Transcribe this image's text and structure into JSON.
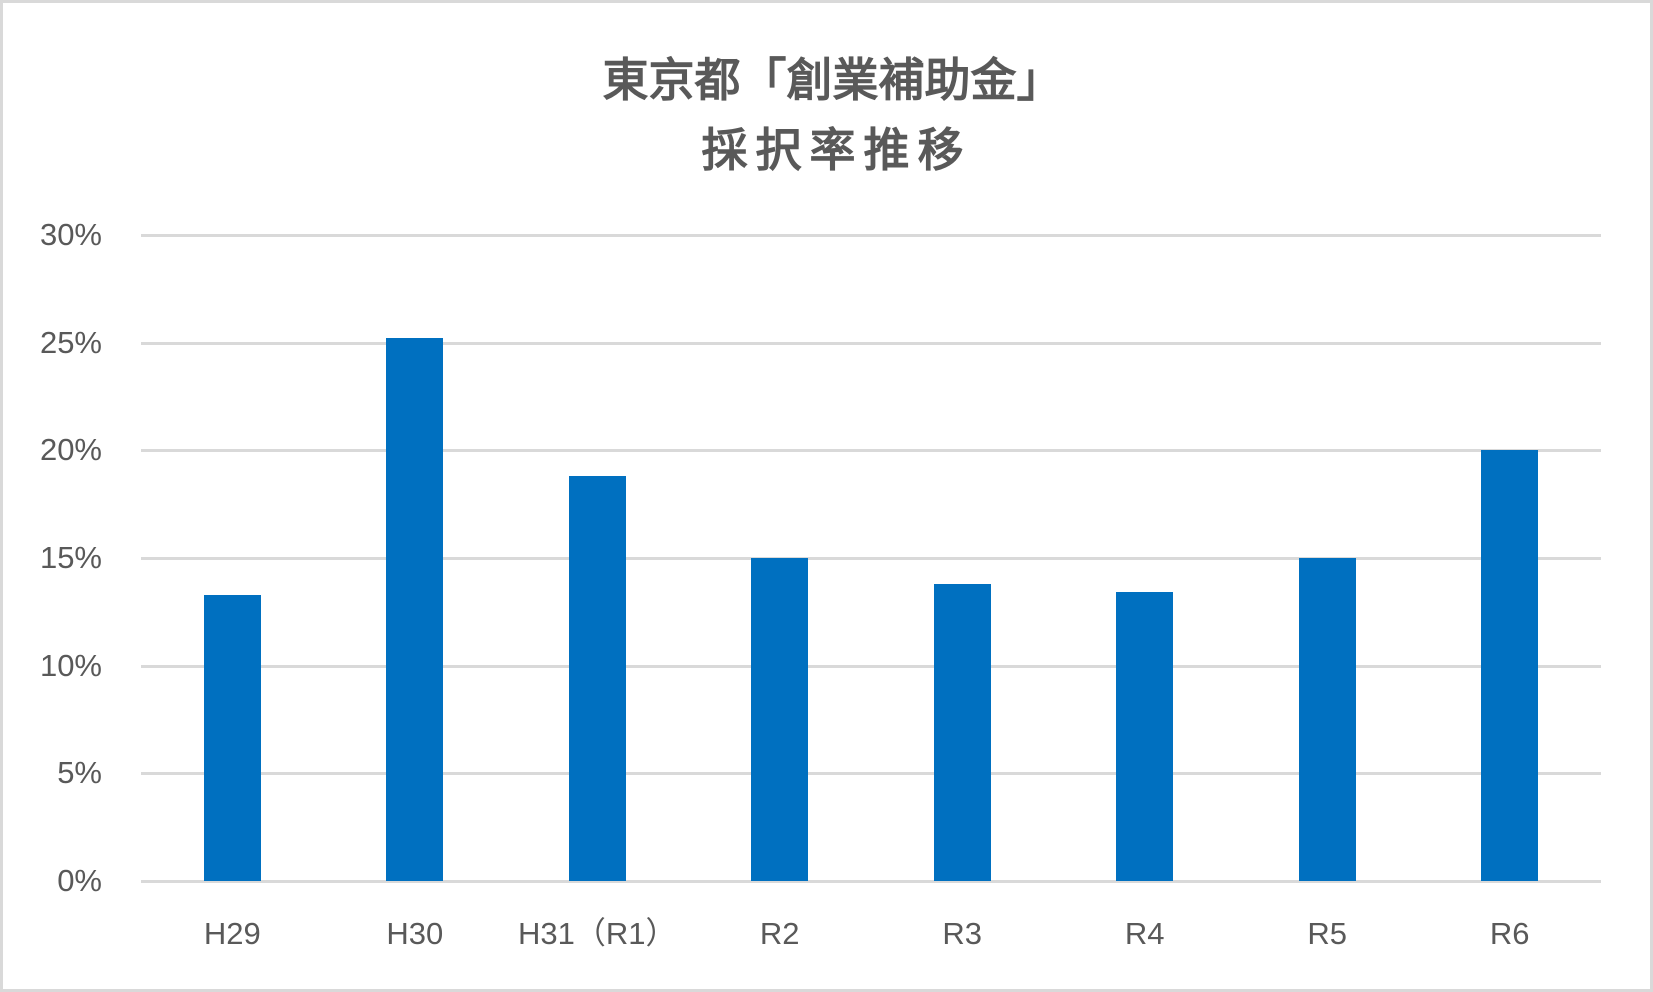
{
  "chart": {
    "title_line1": "東京都「創業補助金」",
    "title_line2": "採択率推移",
    "bar_color": "#0070C0",
    "grid_color": "#D9D9D9",
    "text_color": "#595959",
    "y_ticks": [
      "0%",
      "5%",
      "10%",
      "15%",
      "20%",
      "25%",
      "30%"
    ],
    "categories": [
      "H29",
      "H30",
      "H31（R1）",
      "R2",
      "R3",
      "R4",
      "R5",
      "R6"
    ]
  },
  "chart_data": {
    "type": "bar",
    "title": "東京都「創業補助金」採択率推移",
    "categories": [
      "H29",
      "H30",
      "H31（R1）",
      "R2",
      "R3",
      "R4",
      "R5",
      "R6"
    ],
    "values": [
      13.3,
      25.2,
      18.8,
      15.0,
      13.8,
      13.4,
      15.0,
      20.0
    ],
    "unit": "%",
    "xlabel": "",
    "ylabel": "",
    "ylim": [
      0,
      30
    ],
    "yticks": [
      0,
      5,
      10,
      15,
      20,
      25,
      30
    ],
    "ytick_labels": [
      "0%",
      "5%",
      "10%",
      "15%",
      "20%",
      "25%",
      "30%"
    ],
    "grid": true,
    "legend": null
  }
}
